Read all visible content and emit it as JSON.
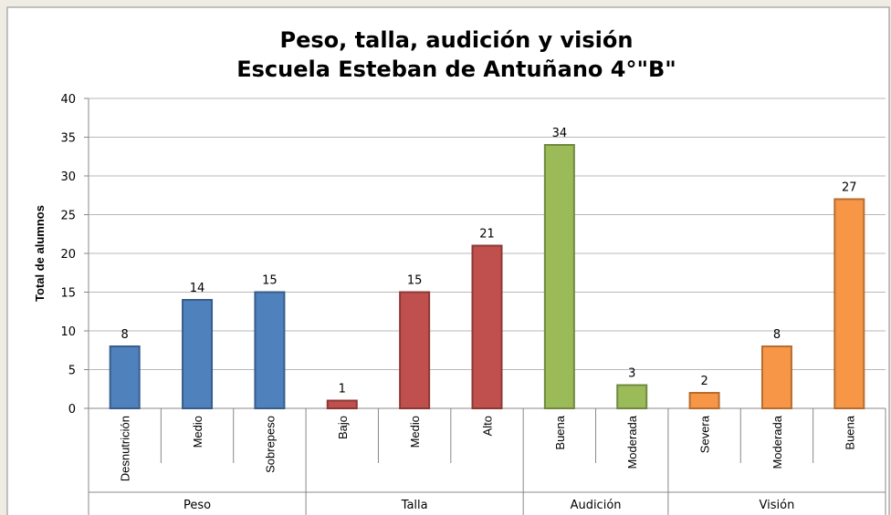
{
  "chart_data": {
    "type": "bar",
    "title": "Peso, talla, audición y visión",
    "subtitle": "Escuela Esteban de Antuñano 4°\"B\"",
    "ylabel": "Total de alumnos",
    "ylim": [
      0,
      40
    ],
    "yticks": [
      0,
      5,
      10,
      15,
      20,
      25,
      30,
      35,
      40
    ],
    "grid": true,
    "series": [
      {
        "name": "Peso",
        "color": "#4f81bd",
        "edgecolor": "#385d8a",
        "categories": [
          "Desnutrición",
          "Medio",
          "Sobrepeso"
        ],
        "values": [
          8,
          14,
          15
        ]
      },
      {
        "name": "Talla",
        "color": "#c0504d",
        "edgecolor": "#8c3836",
        "categories": [
          "Bajo",
          "Medio",
          "Alto"
        ],
        "values": [
          1,
          15,
          21
        ]
      },
      {
        "name": "Audición",
        "color": "#9bbb59",
        "edgecolor": "#71893f",
        "categories": [
          "Buena",
          "Moderada"
        ],
        "values": [
          34,
          3
        ]
      },
      {
        "name": "Visión",
        "color": "#f79646",
        "edgecolor": "#b66d31",
        "categories": [
          "Severa",
          "Moderada",
          "Buena"
        ],
        "values": [
          2,
          8,
          27
        ]
      }
    ]
  }
}
